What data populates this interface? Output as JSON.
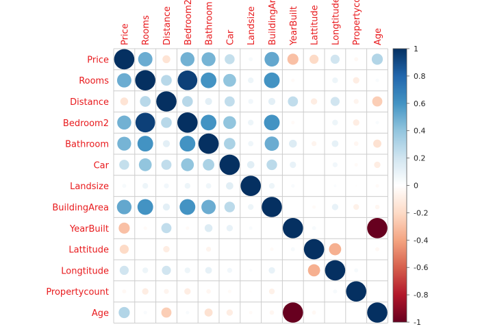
{
  "chart_data": {
    "type": "heatmap",
    "title": "",
    "variables": [
      "Price",
      "Rooms",
      "Distance",
      "Bedroom2",
      "Bathroom",
      "Car",
      "Landsize",
      "BuildingArea",
      "YearBuilt",
      "Lattitude",
      "Longtitude",
      "Propertycount",
      "Age"
    ],
    "column_labels": [
      "Price",
      "Rooms",
      "Distance",
      "Bedroom2",
      "Bathroom",
      "Car",
      "Landsize",
      "BuildingAre",
      "YearBuilt",
      "Lattitude",
      "Longtitude",
      "Propertycoun",
      "Age"
    ],
    "matrix": [
      [
        1.0,
        0.5,
        -0.15,
        0.48,
        0.47,
        0.24,
        0.04,
        0.52,
        -0.3,
        -0.2,
        0.2,
        -0.04,
        0.3
      ],
      [
        0.5,
        1.0,
        0.28,
        0.94,
        0.6,
        0.4,
        0.08,
        0.6,
        -0.03,
        0.0,
        0.08,
        -0.1,
        0.03
      ],
      [
        -0.15,
        0.28,
        1.0,
        0.28,
        0.12,
        0.25,
        0.06,
        0.12,
        0.25,
        -0.1,
        0.2,
        -0.06,
        -0.25
      ],
      [
        0.48,
        0.94,
        0.28,
        1.0,
        0.6,
        0.4,
        0.08,
        0.6,
        -0.03,
        0.0,
        0.08,
        -0.1,
        0.03
      ],
      [
        0.47,
        0.6,
        0.12,
        0.6,
        1.0,
        0.32,
        0.07,
        0.5,
        0.15,
        -0.06,
        0.11,
        -0.05,
        -0.16
      ],
      [
        0.24,
        0.4,
        0.25,
        0.4,
        0.32,
        1.0,
        0.13,
        0.27,
        0.1,
        0.0,
        0.06,
        -0.03,
        -0.1
      ],
      [
        0.04,
        0.08,
        0.06,
        0.08,
        0.07,
        0.13,
        1.0,
        0.08,
        0.03,
        0.0,
        0.02,
        -0.01,
        -0.03
      ],
      [
        0.52,
        0.6,
        0.12,
        0.6,
        0.5,
        0.27,
        0.08,
        1.0,
        0.0,
        -0.03,
        0.1,
        -0.08,
        -0.05
      ],
      [
        -0.3,
        -0.03,
        0.25,
        -0.03,
        0.15,
        0.1,
        0.03,
        0.0,
        1.0,
        0.04,
        0.0,
        0.0,
        -1.0
      ],
      [
        -0.2,
        0.0,
        -0.1,
        0.0,
        -0.06,
        0.0,
        0.0,
        -0.03,
        0.04,
        1.0,
        -0.36,
        0.0,
        -0.04
      ],
      [
        0.2,
        0.08,
        0.2,
        0.08,
        0.11,
        0.06,
        0.02,
        0.1,
        0.0,
        -0.36,
        1.0,
        0.04,
        0.0
      ],
      [
        -0.04,
        -0.1,
        -0.06,
        -0.1,
        -0.05,
        -0.03,
        -0.01,
        -0.08,
        0.0,
        0.0,
        0.04,
        1.0,
        0.0
      ],
      [
        0.3,
        0.03,
        -0.25,
        0.03,
        -0.16,
        -0.1,
        -0.03,
        -0.05,
        -1.0,
        -0.04,
        0.0,
        0.0,
        1.0
      ]
    ],
    "colorbar": {
      "min": -1,
      "max": 1,
      "ticks": [
        1,
        0.8,
        0.6,
        0.4,
        0.2,
        0,
        -0.2,
        -0.4,
        -0.6,
        -0.8,
        -1
      ]
    },
    "label_color": "#e8191c",
    "palette": [
      "#67001f",
      "#b2182b",
      "#d6604d",
      "#f4a582",
      "#fddbc7",
      "#ffffff",
      "#d1e5f0",
      "#92c5de",
      "#4393c3",
      "#2166ac",
      "#053061"
    ]
  }
}
